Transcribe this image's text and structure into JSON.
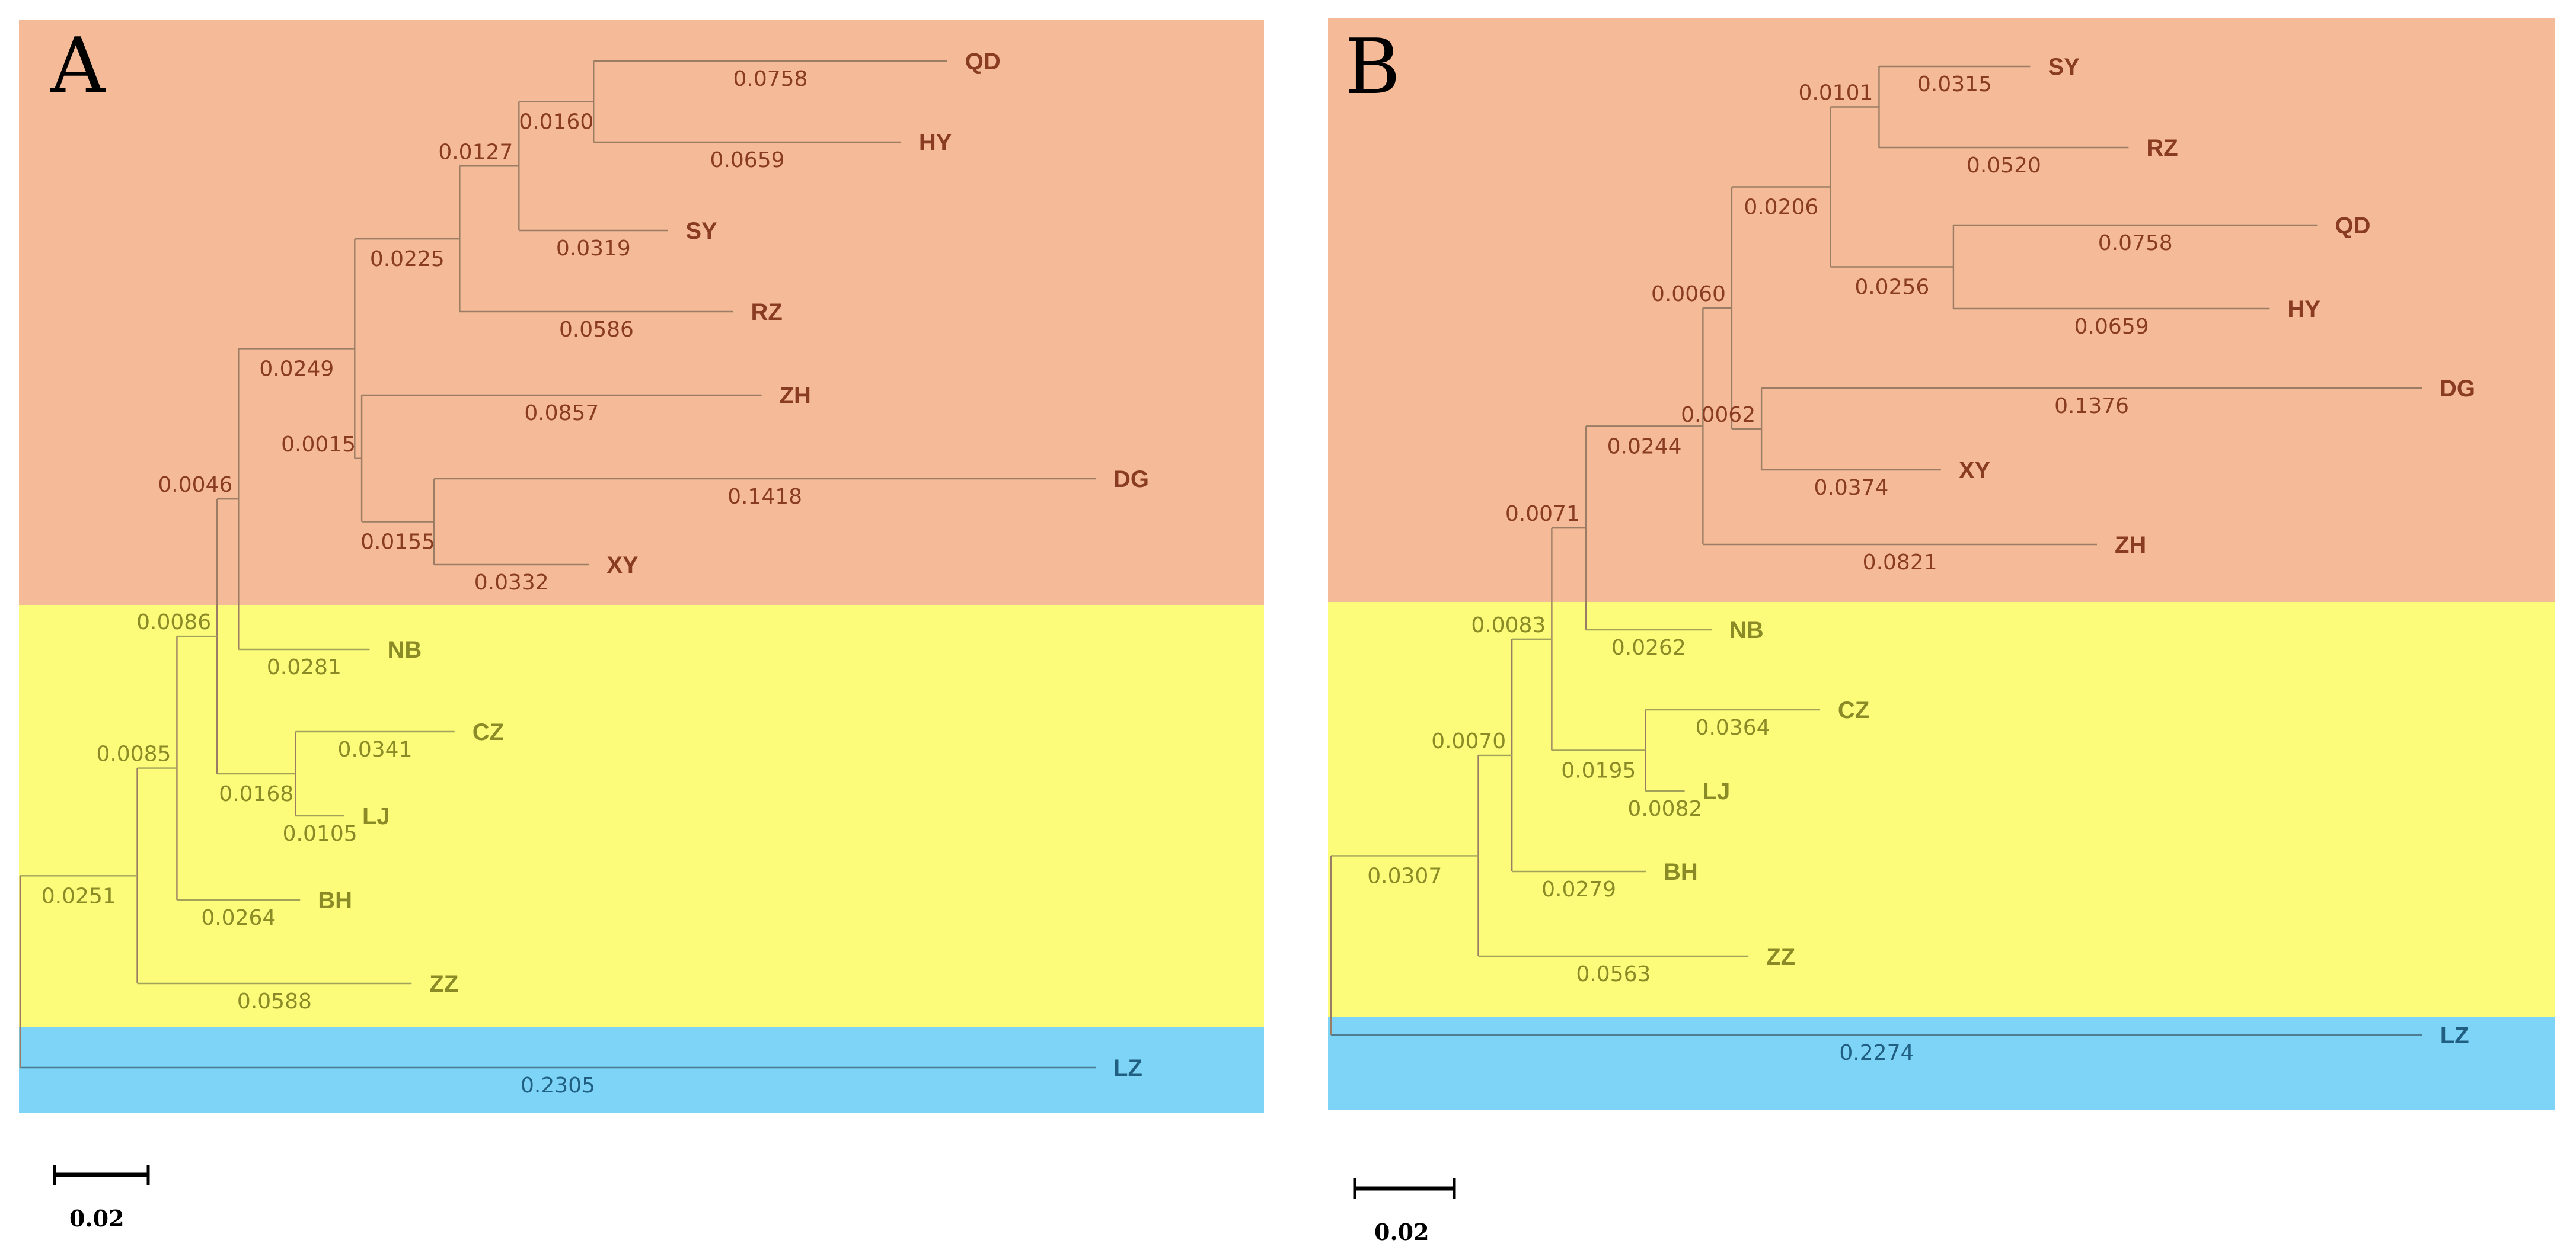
{
  "colors": {
    "clade_orange": "#f5bb98",
    "clade_yellow": "#fcfc7a",
    "clade_blue": "#7dd4f7",
    "text_orange": "#8a3c22",
    "text_yellow": "#8a8a27",
    "text_blue": "#205f82"
  },
  "scale_bar": {
    "value": 0.02,
    "label": "0.02"
  },
  "panels": [
    {
      "letter": "A",
      "root": "r",
      "clades": [
        {
          "color": "orange",
          "members": [
            "QD",
            "HY",
            "SY",
            "RZ",
            "ZH",
            "DG",
            "XY"
          ]
        },
        {
          "color": "yellow",
          "members": [
            "NB",
            "CZ",
            "LJ",
            "BH",
            "ZZ"
          ]
        },
        {
          "color": "blue",
          "members": [
            "LZ"
          ]
        }
      ],
      "nodes": [
        {
          "id": "r",
          "parent": null,
          "length": 0
        },
        {
          "id": "n_big",
          "parent": "r",
          "length": 0.0251,
          "label": "0.0251"
        },
        {
          "id": "LZ",
          "parent": "r",
          "length": 0.2305,
          "label": "0.2305",
          "tip": true,
          "clade": "blue"
        },
        {
          "id": "n2",
          "parent": "n_big",
          "length": 0.0085,
          "label": "0.0085"
        },
        {
          "id": "ZZ",
          "parent": "n_big",
          "length": 0.0588,
          "label": "0.0588",
          "tip": true,
          "clade": "yellow"
        },
        {
          "id": "n3",
          "parent": "n2",
          "length": 0.0086,
          "label": "0.0086"
        },
        {
          "id": "BH",
          "parent": "n2",
          "length": 0.0264,
          "label": "0.0264",
          "tip": true,
          "clade": "yellow"
        },
        {
          "id": "n4",
          "parent": "n3",
          "length": 0.0046,
          "label": "0.0046"
        },
        {
          "id": "n_czlj",
          "parent": "n3",
          "length": 0.0168,
          "label": "0.0168"
        },
        {
          "id": "CZ",
          "parent": "n_czlj",
          "length": 0.0341,
          "label": "0.0341",
          "tip": true,
          "clade": "yellow"
        },
        {
          "id": "LJ",
          "parent": "n_czlj",
          "length": 0.0105,
          "label": "0.0105",
          "tip": true,
          "clade": "yellow"
        },
        {
          "id": "n5",
          "parent": "n4",
          "length": 0.0249,
          "label": "0.0249"
        },
        {
          "id": "NB",
          "parent": "n4",
          "length": 0.0281,
          "label": "0.0281",
          "tip": true,
          "clade": "yellow"
        },
        {
          "id": "n6",
          "parent": "n5",
          "length": 0.0225,
          "label": "0.0225"
        },
        {
          "id": "n_zh",
          "parent": "n5",
          "length": 0.0015,
          "label": "0.0015"
        },
        {
          "id": "n7",
          "parent": "n6",
          "length": 0.0127,
          "label": "0.0127"
        },
        {
          "id": "RZ",
          "parent": "n6",
          "length": 0.0586,
          "label": "0.0586",
          "tip": true,
          "clade": "orange"
        },
        {
          "id": "n8",
          "parent": "n7",
          "length": 0.016,
          "label": "0.0160"
        },
        {
          "id": "SY",
          "parent": "n7",
          "length": 0.0319,
          "label": "0.0319",
          "tip": true,
          "clade": "orange"
        },
        {
          "id": "QD",
          "parent": "n8",
          "length": 0.0758,
          "label": "0.0758",
          "tip": true,
          "clade": "orange"
        },
        {
          "id": "HY",
          "parent": "n8",
          "length": 0.0659,
          "label": "0.0659",
          "tip": true,
          "clade": "orange"
        },
        {
          "id": "ZH",
          "parent": "n_zh",
          "length": 0.0857,
          "label": "0.0857",
          "tip": true,
          "clade": "orange"
        },
        {
          "id": "n_dg",
          "parent": "n_zh",
          "length": 0.0155,
          "label": "0.0155"
        },
        {
          "id": "DG",
          "parent": "n_dg",
          "length": 0.1418,
          "label": "0.1418",
          "tip": true,
          "clade": "orange"
        },
        {
          "id": "XY",
          "parent": "n_dg",
          "length": 0.0332,
          "label": "0.0332",
          "tip": true,
          "clade": "orange"
        }
      ]
    },
    {
      "letter": "B",
      "root": "r",
      "clades": [
        {
          "color": "orange",
          "members": [
            "SY",
            "RZ",
            "QD",
            "HY",
            "DG",
            "XY",
            "ZH"
          ]
        },
        {
          "color": "yellow",
          "members": [
            "NB",
            "CZ",
            "LJ",
            "BH",
            "ZZ"
          ]
        },
        {
          "color": "blue",
          "members": [
            "LZ"
          ]
        }
      ],
      "nodes": [
        {
          "id": "r",
          "parent": null,
          "length": 0
        },
        {
          "id": "m1",
          "parent": "r",
          "length": 0.0307,
          "label": "0.0307"
        },
        {
          "id": "LZ",
          "parent": "r",
          "length": 0.2274,
          "label": "0.2274",
          "tip": true,
          "clade": "blue"
        },
        {
          "id": "m2",
          "parent": "m1",
          "length": 0.007,
          "label": "0.0070"
        },
        {
          "id": "ZZ",
          "parent": "m1",
          "length": 0.0563,
          "label": "0.0563",
          "tip": true,
          "clade": "yellow"
        },
        {
          "id": "m3",
          "parent": "m2",
          "length": 0.0083,
          "label": "0.0083"
        },
        {
          "id": "BH",
          "parent": "m2",
          "length": 0.0279,
          "label": "0.0279",
          "tip": true,
          "clade": "yellow"
        },
        {
          "id": "m4",
          "parent": "m3",
          "length": 0.0071,
          "label": "0.0071"
        },
        {
          "id": "m_czlj",
          "parent": "m3",
          "length": 0.0195,
          "label": "0.0195"
        },
        {
          "id": "CZ",
          "parent": "m_czlj",
          "length": 0.0364,
          "label": "0.0364",
          "tip": true,
          "clade": "yellow"
        },
        {
          "id": "LJ",
          "parent": "m_czlj",
          "length": 0.0082,
          "label": "0.0082",
          "tip": true,
          "clade": "yellow"
        },
        {
          "id": "m5",
          "parent": "m4",
          "length": 0.0244,
          "label": "0.0244"
        },
        {
          "id": "NB",
          "parent": "m4",
          "length": 0.0262,
          "label": "0.0262",
          "tip": true,
          "clade": "yellow"
        },
        {
          "id": "m6",
          "parent": "m5",
          "length": 0.006,
          "label": "0.0060"
        },
        {
          "id": "ZH",
          "parent": "m5",
          "length": 0.0821,
          "label": "0.0821",
          "tip": true,
          "clade": "orange"
        },
        {
          "id": "m7",
          "parent": "m6",
          "length": 0.0206,
          "label": "0.0206"
        },
        {
          "id": "m_dg",
          "parent": "m6",
          "length": 0.0062,
          "label": "0.0062"
        },
        {
          "id": "m8",
          "parent": "m7",
          "length": 0.0101,
          "label": "0.0101"
        },
        {
          "id": "m9",
          "parent": "m7",
          "length": 0.0256,
          "label": "0.0256"
        },
        {
          "id": "SY",
          "parent": "m8",
          "length": 0.0315,
          "label": "0.0315",
          "tip": true,
          "clade": "orange"
        },
        {
          "id": "RZ",
          "parent": "m8",
          "length": 0.052,
          "label": "0.0520",
          "tip": true,
          "clade": "orange"
        },
        {
          "id": "QD",
          "parent": "m9",
          "length": 0.0758,
          "label": "0.0758",
          "tip": true,
          "clade": "orange"
        },
        {
          "id": "HY",
          "parent": "m9",
          "length": 0.0659,
          "label": "0.0659",
          "tip": true,
          "clade": "orange"
        },
        {
          "id": "DG",
          "parent": "m_dg",
          "length": 0.1376,
          "label": "0.1376",
          "tip": true,
          "clade": "orange"
        },
        {
          "id": "XY",
          "parent": "m_dg",
          "length": 0.0374,
          "label": "0.0374",
          "tip": true,
          "clade": "orange"
        }
      ]
    }
  ]
}
